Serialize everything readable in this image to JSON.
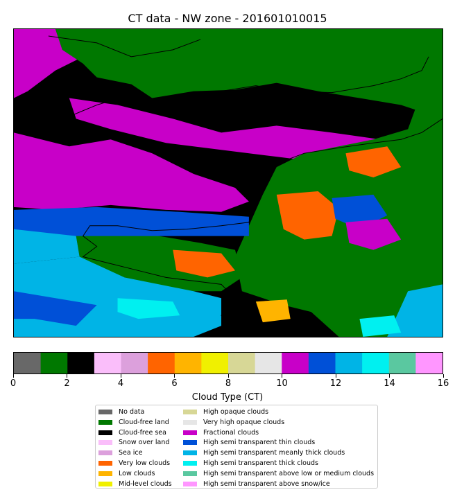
{
  "chart_data": {
    "type": "heatmap",
    "title": "CT data - NW zone - 201601010015",
    "colorbar": {
      "label": "Cloud Type (CT)",
      "range": [
        0,
        16
      ],
      "ticks": [
        "0",
        "2",
        "4",
        "6",
        "8",
        "10",
        "12",
        "14",
        "16"
      ]
    },
    "classes": [
      {
        "value": 0,
        "label": "No data",
        "color": "#686868"
      },
      {
        "value": 1,
        "label": "Cloud-free land",
        "color": "#007800"
      },
      {
        "value": 2,
        "label": "Cloud-free sea",
        "color": "#000000"
      },
      {
        "value": 3,
        "label": "Snow over land",
        "color": "#fabefa"
      },
      {
        "value": 4,
        "label": "Sea ice",
        "color": "#dca0dc"
      },
      {
        "value": 5,
        "label": "Very low clouds",
        "color": "#ff6400"
      },
      {
        "value": 6,
        "label": "Low clouds",
        "color": "#ffb400"
      },
      {
        "value": 7,
        "label": "Mid-level clouds",
        "color": "#f0f000"
      },
      {
        "value": 8,
        "label": "High opaque clouds",
        "color": "#d7d796"
      },
      {
        "value": 9,
        "label": "Very high opaque clouds",
        "color": "#e6e6e6"
      },
      {
        "value": 10,
        "label": "Fractional clouds",
        "color": "#c800c8"
      },
      {
        "value": 11,
        "label": "High semi transparent thin clouds",
        "color": "#0050d7"
      },
      {
        "value": 12,
        "label": "High semi transparent meanly thick clouds",
        "color": "#00b4e6"
      },
      {
        "value": 13,
        "label": "High semi transparent thick clouds",
        "color": "#00f0f0"
      },
      {
        "value": 14,
        "label": "High semi transparent above low or medium clouds",
        "color": "#5ac8a0"
      },
      {
        "value": 15,
        "label": "High semi transparent above snow/ice",
        "color": "#ff96ff"
      }
    ]
  }
}
